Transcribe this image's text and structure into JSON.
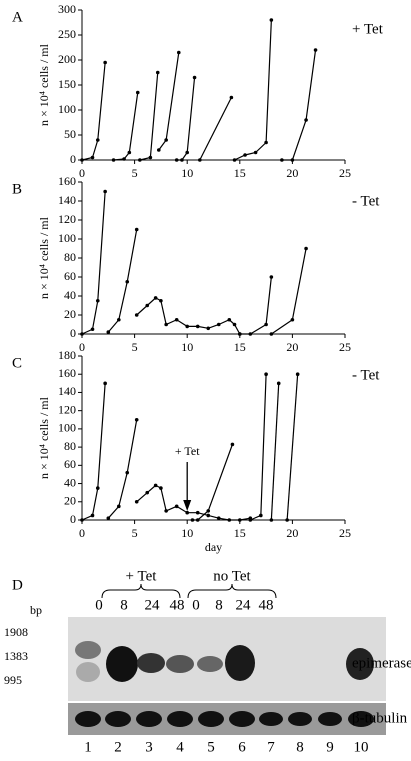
{
  "chart_data": [
    {
      "type": "line",
      "panel": "A",
      "annotation": "+ Tet",
      "ylabel": "n × 10⁴ cells / ml",
      "xlim": [
        0,
        25
      ],
      "xticks": [
        0,
        5,
        10,
        15,
        20,
        25
      ],
      "ylim": [
        0,
        300
      ],
      "yticks": [
        0,
        50,
        100,
        150,
        200,
        250,
        300
      ],
      "series": [
        {
          "color": "#000",
          "x": [
            0,
            1,
            1.5,
            2.2
          ],
          "values": [
            0,
            5,
            40,
            195
          ]
        },
        {
          "color": "#000",
          "x": [
            3,
            4,
            4.5,
            5.3
          ],
          "values": [
            0,
            2,
            15,
            135
          ]
        },
        {
          "color": "#000",
          "x": [
            5.5,
            6.5,
            7.2
          ],
          "values": [
            0,
            5,
            175
          ]
        },
        {
          "color": "#000",
          "x": [
            7.3,
            8,
            9.2
          ],
          "values": [
            20,
            40,
            215
          ]
        },
        {
          "color": "#000",
          "x": [
            9,
            9.5,
            10,
            10.7
          ],
          "values": [
            0,
            0,
            15,
            165
          ]
        },
        {
          "color": "#000",
          "x": [
            11.2,
            14.2
          ],
          "values": [
            0,
            125
          ]
        },
        {
          "color": "#000",
          "x": [
            14.5,
            15.5,
            16.5,
            17.5,
            18
          ],
          "values": [
            0,
            10,
            15,
            35,
            280
          ]
        },
        {
          "color": "#000",
          "x": [
            19,
            20,
            21.3,
            22.2
          ],
          "values": [
            0,
            0,
            80,
            220
          ]
        }
      ]
    },
    {
      "type": "line",
      "panel": "B",
      "annotation": "- Tet",
      "ylabel": "n × 10⁴ cells / ml",
      "xlim": [
        0,
        25
      ],
      "xticks": [
        0,
        5,
        10,
        15,
        20,
        25
      ],
      "ylim": [
        0,
        160
      ],
      "yticks": [
        0,
        20,
        40,
        60,
        80,
        100,
        120,
        140,
        160
      ],
      "series": [
        {
          "color": "#000",
          "x": [
            0,
            1,
            1.5,
            2.2
          ],
          "values": [
            0,
            5,
            35,
            150
          ]
        },
        {
          "color": "#000",
          "x": [
            2.5,
            3.5,
            4.3,
            5.2
          ],
          "values": [
            2,
            15,
            55,
            110
          ]
        },
        {
          "color": "#000",
          "x": [
            5.2,
            6.2,
            7,
            7.5,
            8,
            9,
            10,
            11,
            12,
            13,
            14,
            14.5,
            15
          ],
          "values": [
            20,
            30,
            38,
            35,
            10,
            15,
            8,
            8,
            6,
            10,
            15,
            10,
            0
          ]
        },
        {
          "color": "#000",
          "x": [
            15,
            16,
            17.5,
            18
          ],
          "values": [
            0,
            0,
            10,
            60
          ]
        },
        {
          "color": "#000",
          "x": [
            18,
            20,
            21.3
          ],
          "values": [
            0,
            15,
            90
          ]
        }
      ]
    },
    {
      "type": "line",
      "panel": "C",
      "annotation": "- Tet",
      "ylabel": "n × 10⁴ cells / ml",
      "xlabel": "day",
      "arrow": {
        "label": "+ Tet",
        "x": 10
      },
      "xlim": [
        0,
        25
      ],
      "xticks": [
        0,
        5,
        10,
        15,
        20,
        25
      ],
      "ylim": [
        0,
        180
      ],
      "yticks": [
        0,
        20,
        40,
        60,
        80,
        100,
        120,
        140,
        160,
        180
      ],
      "series": [
        {
          "color": "#000",
          "x": [
            0,
            1,
            1.5,
            2.2
          ],
          "values": [
            0,
            5,
            35,
            150
          ]
        },
        {
          "color": "#000",
          "x": [
            2.5,
            3.5,
            4.3,
            5.2
          ],
          "values": [
            2,
            15,
            52,
            110
          ]
        },
        {
          "color": "#000",
          "x": [
            5.2,
            6.2,
            7,
            7.5,
            8,
            9,
            10,
            11,
            12,
            13,
            14,
            15,
            16
          ],
          "values": [
            20,
            30,
            38,
            35,
            10,
            15,
            8,
            8,
            5,
            2,
            0,
            0,
            2
          ]
        },
        {
          "color": "#000",
          "x": [
            10.5,
            11,
            12,
            14.3
          ],
          "values": [
            0,
            0,
            10,
            83
          ]
        },
        {
          "color": "#000",
          "x": [
            16,
            17,
            17.5
          ],
          "values": [
            0,
            5,
            160
          ]
        },
        {
          "color": "#000",
          "x": [
            18,
            18.7
          ],
          "values": [
            0,
            150
          ]
        },
        {
          "color": "#000",
          "x": [
            19.5,
            20.5
          ],
          "values": [
            0,
            160
          ]
        }
      ]
    }
  ],
  "gel": {
    "panel": "D",
    "bp_label": "bp",
    "markers": [
      "1908",
      "1383",
      "995"
    ],
    "groups": [
      {
        "label": "+ Tet",
        "times": [
          "0",
          "8",
          "24",
          "48"
        ]
      },
      {
        "label": "no Tet",
        "times": [
          "0",
          "8",
          "24",
          "48"
        ]
      }
    ],
    "bands": [
      "epimerase",
      "β-tubulin"
    ],
    "lanes": [
      "1",
      "2",
      "3",
      "4",
      "5",
      "6",
      "7",
      "8",
      "9",
      "10"
    ]
  }
}
